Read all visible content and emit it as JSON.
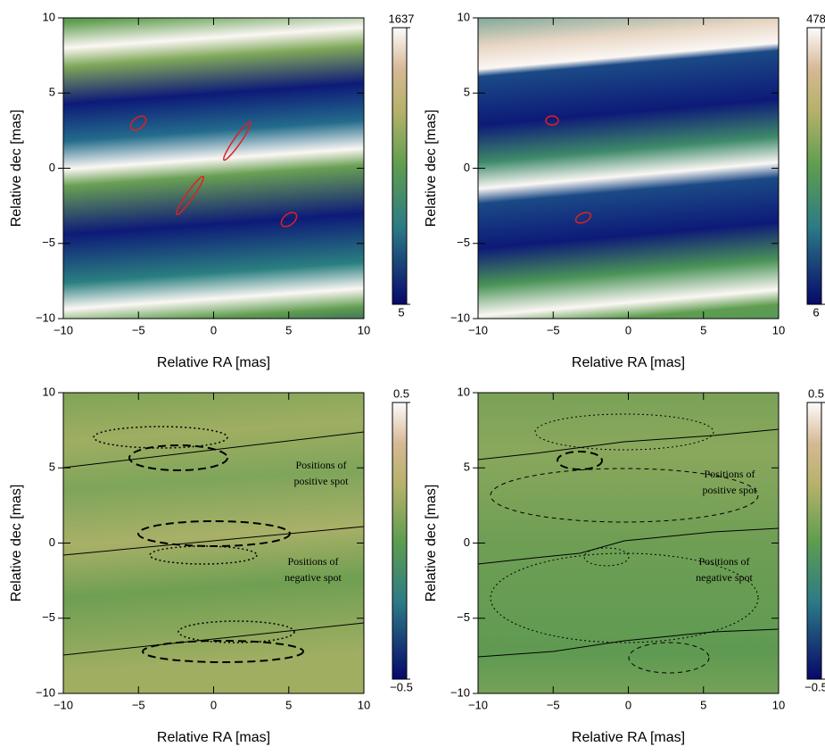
{
  "chart_data": [
    {
      "type": "heatmap",
      "xlabel": "Relative RA [mas]",
      "ylabel": "Relative dec [mas]",
      "xlim": [
        -10,
        10
      ],
      "ylim": [
        -10,
        10
      ],
      "xticks": [
        {
          "value": -10,
          "label": "−10"
        },
        {
          "value": -5,
          "label": "−5"
        },
        0,
        5,
        10
      ],
      "yticks": [
        {
          "value": -10,
          "label": "−10"
        },
        {
          "value": -5,
          "label": "−5"
        },
        0,
        5,
        10
      ],
      "clim": [
        5,
        1637
      ],
      "cticks": [
        5,
        1637
      ],
      "colormap": "gist_earth"
    },
    {
      "type": "heatmap",
      "xlabel": "Relative RA [mas]",
      "ylabel": "Relative dec [mas]",
      "xlim": [
        -10,
        10
      ],
      "ylim": [
        -10,
        10
      ],
      "xticks": [
        {
          "value": -10,
          "label": "−10"
        },
        {
          "value": -5,
          "label": "−5"
        },
        0,
        5,
        10
      ],
      "yticks": [
        {
          "value": -10,
          "label": "−10"
        },
        {
          "value": -5,
          "label": "−5"
        },
        0,
        5,
        10
      ],
      "clim": [
        6,
        478
      ],
      "cticks": [
        6,
        478
      ],
      "colormap": "gist_earth"
    },
    {
      "type": "heatmap",
      "xlabel": "Relative RA [mas]",
      "ylabel": "Relative dec [mas]",
      "xlim": [
        -10,
        10
      ],
      "ylim": [
        -10,
        10
      ],
      "xticks": [
        {
          "value": -10,
          "label": "−10"
        },
        {
          "value": -5,
          "label": "−5"
        },
        0,
        5,
        10
      ],
      "yticks": [
        {
          "value": -10,
          "label": "−10"
        },
        {
          "value": -5,
          "label": "−5"
        },
        0,
        5,
        10
      ],
      "clim": [
        -0.5,
        0.5
      ],
      "cticks": [
        {
          "value": -0.5,
          "label": "−0.5"
        },
        0.5
      ],
      "colormap": "gist_earth",
      "annotations": [
        [
          "Positions of",
          "positive spot"
        ],
        [
          "Positions of",
          "negative spot"
        ]
      ]
    },
    {
      "type": "heatmap",
      "xlabel": "Relative RA [mas]",
      "ylabel": "Relative dec [mas]",
      "xlim": [
        -10,
        10
      ],
      "ylim": [
        -10,
        10
      ],
      "xticks": [
        {
          "value": -10,
          "label": "−10"
        },
        {
          "value": -5,
          "label": "−5"
        },
        0,
        5,
        10
      ],
      "yticks": [
        {
          "value": -10,
          "label": "−10"
        },
        {
          "value": -5,
          "label": "−5"
        },
        0,
        5,
        10
      ],
      "clim": [
        -0.5,
        0.5
      ],
      "cticks": [
        {
          "value": -0.5,
          "label": "−0.5"
        },
        0.5
      ],
      "colormap": "gist_earth",
      "annotations": [
        [
          "Positions of",
          "positive spot"
        ],
        [
          "Positions of",
          "negative spot"
        ]
      ]
    }
  ]
}
